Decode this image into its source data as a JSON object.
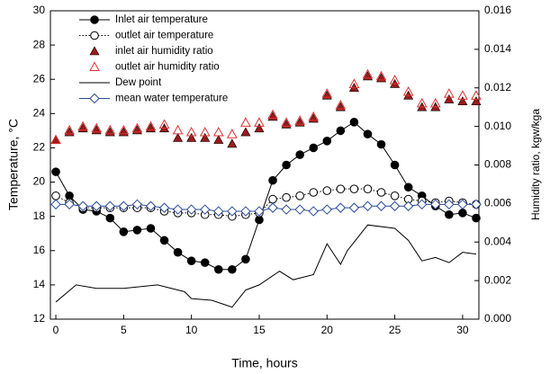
{
  "chart_data": {
    "type": "line",
    "xlabel": "Time, hours",
    "ylabel": "Temperature, °C",
    "y2label": "Humidity ratio, kgw/kga",
    "x": [
      0,
      1,
      2,
      3,
      4,
      5,
      6,
      7,
      8,
      9,
      10,
      11,
      12,
      13,
      14,
      15,
      16,
      17,
      18,
      19,
      20,
      21,
      22,
      23,
      24,
      25,
      26,
      27,
      28,
      29,
      30,
      31
    ],
    "xlim": [
      -0.4,
      31.2
    ],
    "xticks": [
      0,
      5,
      10,
      15,
      20,
      25,
      30
    ],
    "ylim": [
      12,
      30
    ],
    "yticks": [
      12,
      14,
      16,
      18,
      20,
      22,
      24,
      26,
      28,
      30
    ],
    "y2lim": [
      0,
      0.016
    ],
    "y2ticks": [
      {
        "value": 0,
        "label": "0.000"
      },
      {
        "value": 0.002,
        "label": "0.002"
      },
      {
        "value": 0.004,
        "label": "0.004"
      },
      {
        "value": 0.006,
        "label": "0.006"
      },
      {
        "value": 0.008,
        "label": "0.008"
      },
      {
        "value": 0.01,
        "label": "0.010"
      },
      {
        "value": 0.012,
        "label": "0.012"
      },
      {
        "value": 0.014,
        "label": "0.014"
      },
      {
        "value": 0.016,
        "label": "0.016"
      }
    ],
    "series": [
      {
        "name": "Inlet air temperature",
        "color": "#000000",
        "marker": "circle-filled",
        "line": "solid",
        "values": [
          20.6,
          19.2,
          18.4,
          18.3,
          17.9,
          17.1,
          17.2,
          17.3,
          16.6,
          15.9,
          15.4,
          15.3,
          14.9,
          14.9,
          15.5,
          17.8,
          20.1,
          21.0,
          21.6,
          22.0,
          22.4,
          23.0,
          23.5,
          22.8,
          22.2,
          21.0,
          19.7,
          19.2,
          18.6,
          18.1,
          18.2,
          17.9
        ]
      },
      {
        "name": "outlet air temperature",
        "color": "#000000",
        "marker": "circle-open",
        "line": "dotted",
        "values": [
          19.2,
          18.8,
          18.5,
          18.5,
          18.5,
          18.5,
          18.5,
          18.5,
          18.3,
          18.2,
          18.2,
          18.1,
          18.1,
          18.0,
          18.1,
          18.2,
          19.0,
          19.1,
          19.2,
          19.4,
          19.5,
          19.6,
          19.6,
          19.6,
          19.4,
          19.2,
          19.0,
          18.9,
          18.8,
          18.9,
          18.8,
          18.7
        ]
      },
      {
        "name": "inlet air humidity ratio",
        "color": "#9b1b1b",
        "marker": "triangle-filled",
        "line": "none",
        "axis": "y2",
        "values": [
          0.0093,
          0.0097,
          0.0099,
          0.0098,
          0.0097,
          0.0097,
          0.0098,
          0.0099,
          0.0099,
          0.0094,
          0.0094,
          0.0094,
          0.0093,
          0.0091,
          0.0097,
          0.0099,
          0.0105,
          0.0101,
          0.0102,
          0.0104,
          0.0116,
          0.011,
          0.012,
          0.0126,
          0.0125,
          0.0122,
          0.0116,
          0.011,
          0.011,
          0.0114,
          0.0113,
          0.0113
        ]
      },
      {
        "name": "outlet air humidity ratio",
        "color": "#e03030",
        "marker": "triangle-open",
        "line": "none",
        "axis": "y2",
        "values": [
          0.0093,
          0.0098,
          0.01,
          0.0099,
          0.0098,
          0.0098,
          0.0099,
          0.01,
          0.0101,
          0.0098,
          0.0097,
          0.0097,
          0.0097,
          0.0096,
          0.0102,
          0.0102,
          0.0106,
          0.0102,
          0.0103,
          0.0105,
          0.0117,
          0.0111,
          0.0122,
          0.0127,
          0.0126,
          0.0124,
          0.0118,
          0.0112,
          0.0112,
          0.0117,
          0.0116,
          0.0116
        ]
      },
      {
        "name": "Dew point",
        "color": "#000000",
        "marker": "none",
        "line": "solid",
        "x": [
          0,
          1.5,
          3,
          5,
          7.5,
          9.5,
          10,
          11.5,
          13,
          14,
          15,
          16.5,
          17.5,
          19,
          20,
          21,
          21.5,
          23,
          25,
          26,
          27,
          28,
          29,
          30,
          31
        ],
        "values": [
          13.0,
          14.0,
          13.8,
          13.8,
          14.0,
          13.6,
          13.2,
          13.1,
          12.7,
          13.7,
          14.0,
          14.8,
          14.3,
          14.6,
          16.4,
          15.2,
          16.0,
          17.5,
          17.3,
          16.6,
          15.4,
          15.6,
          15.3,
          15.9,
          15.8
        ]
      },
      {
        "name": "mean water temperature",
        "color": "#2a4a9a",
        "marker": "diamond-open",
        "line": "solid",
        "values": [
          18.7,
          18.7,
          18.6,
          18.6,
          18.6,
          18.6,
          18.7,
          18.6,
          18.5,
          18.4,
          18.4,
          18.4,
          18.3,
          18.3,
          18.3,
          18.3,
          18.5,
          18.4,
          18.4,
          18.3,
          18.4,
          18.5,
          18.5,
          18.6,
          18.6,
          18.6,
          18.6,
          18.7,
          18.7,
          18.7,
          18.7,
          18.7
        ]
      }
    ]
  }
}
